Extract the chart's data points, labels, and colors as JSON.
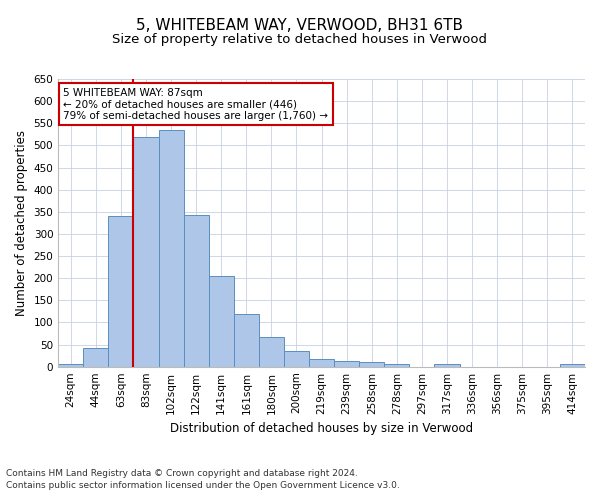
{
  "title1": "5, WHITEBEAM WAY, VERWOOD, BH31 6TB",
  "title2": "Size of property relative to detached houses in Verwood",
  "xlabel": "Distribution of detached houses by size in Verwood",
  "ylabel": "Number of detached properties",
  "footnote1": "Contains HM Land Registry data © Crown copyright and database right 2024.",
  "footnote2": "Contains public sector information licensed under the Open Government Licence v3.0.",
  "bar_labels": [
    "24sqm",
    "44sqm",
    "63sqm",
    "83sqm",
    "102sqm",
    "122sqm",
    "141sqm",
    "161sqm",
    "180sqm",
    "200sqm",
    "219sqm",
    "239sqm",
    "258sqm",
    "278sqm",
    "297sqm",
    "317sqm",
    "336sqm",
    "356sqm",
    "375sqm",
    "395sqm",
    "414sqm"
  ],
  "bar_values": [
    5,
    42,
    340,
    520,
    535,
    342,
    204,
    120,
    67,
    36,
    18,
    13,
    10,
    5,
    0,
    5,
    0,
    0,
    0,
    0,
    5
  ],
  "bar_color": "#aec6e8",
  "bar_edgecolor": "#5a8fc0",
  "grid_color": "#c8d0e0",
  "background_color": "#ffffff",
  "ylim": [
    0,
    650
  ],
  "yticks": [
    0,
    50,
    100,
    150,
    200,
    250,
    300,
    350,
    400,
    450,
    500,
    550,
    600,
    650
  ],
  "redline_x": 2.5,
  "annotation_text": "5 WHITEBEAM WAY: 87sqm\n← 20% of detached houses are smaller (446)\n79% of semi-detached houses are larger (1,760) →",
  "annotation_box_color": "#ffffff",
  "annotation_box_edgecolor": "#cc0000",
  "title1_fontsize": 11,
  "title2_fontsize": 9.5,
  "axis_label_fontsize": 8.5,
  "tick_fontsize": 7.5,
  "annotation_fontsize": 7.5,
  "footnote_fontsize": 6.5
}
